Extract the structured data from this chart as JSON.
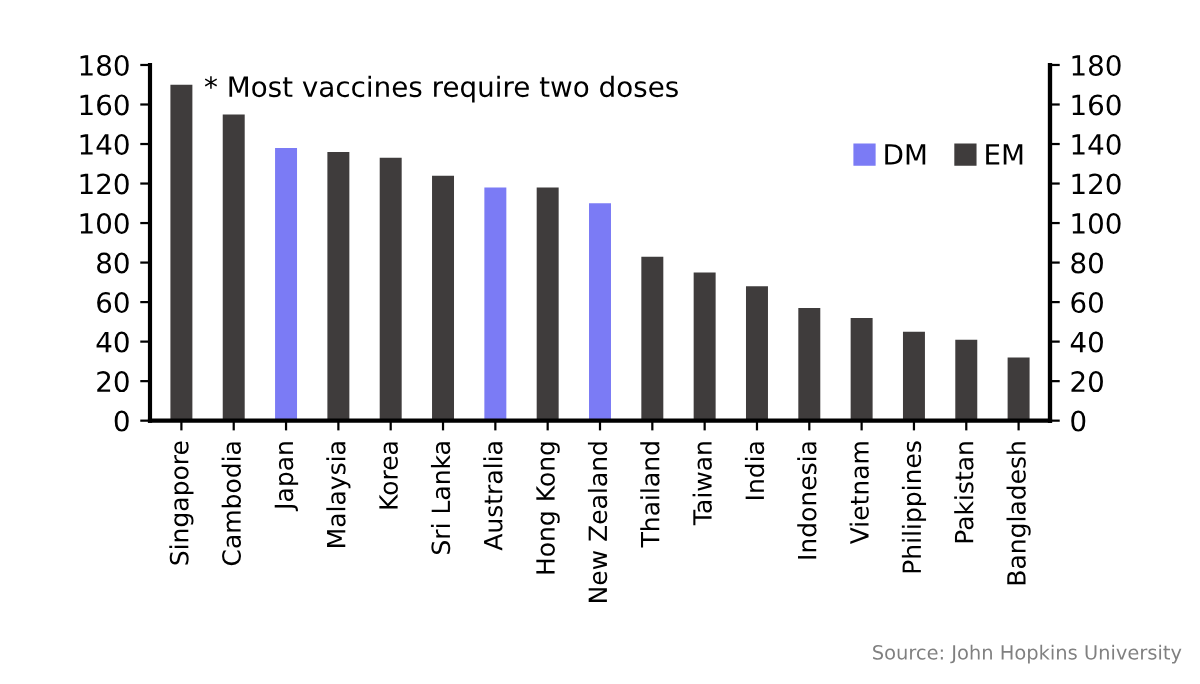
{
  "chart_data": {
    "type": "bar",
    "categories": [
      "Singapore",
      "Cambodia",
      "Japan",
      "Malaysia",
      "Korea",
      "Sri Lanka",
      "Australia",
      "Hong Kong",
      "New Zealand",
      "Thailand",
      "Taiwan",
      "India",
      "Indonesia",
      "Vietnam",
      "Philippines",
      "Pakistan",
      "Bangladesh"
    ],
    "series": [
      {
        "name": "DM",
        "color": "#7b7bf5",
        "values": [
          null,
          null,
          138,
          null,
          null,
          null,
          118,
          null,
          110,
          null,
          null,
          null,
          null,
          null,
          null,
          null,
          null
        ]
      },
      {
        "name": "EM",
        "color": "#3f3c3c",
        "values": [
          170,
          155,
          null,
          136,
          133,
          124,
          null,
          118,
          null,
          83,
          75,
          68,
          57,
          52,
          45,
          41,
          32
        ]
      }
    ],
    "ylim": [
      0,
      180
    ],
    "yticks": [
      0,
      20,
      40,
      60,
      80,
      100,
      120,
      140,
      160,
      180
    ],
    "y2lim": [
      0,
      180
    ],
    "y2ticks": [
      0,
      20,
      40,
      60,
      80,
      100,
      120,
      140,
      160,
      180
    ],
    "grid": false,
    "legend": "top right",
    "annotations": [
      "* Most vaccines require two doses",
      "Source: John Hopkins University"
    ]
  }
}
